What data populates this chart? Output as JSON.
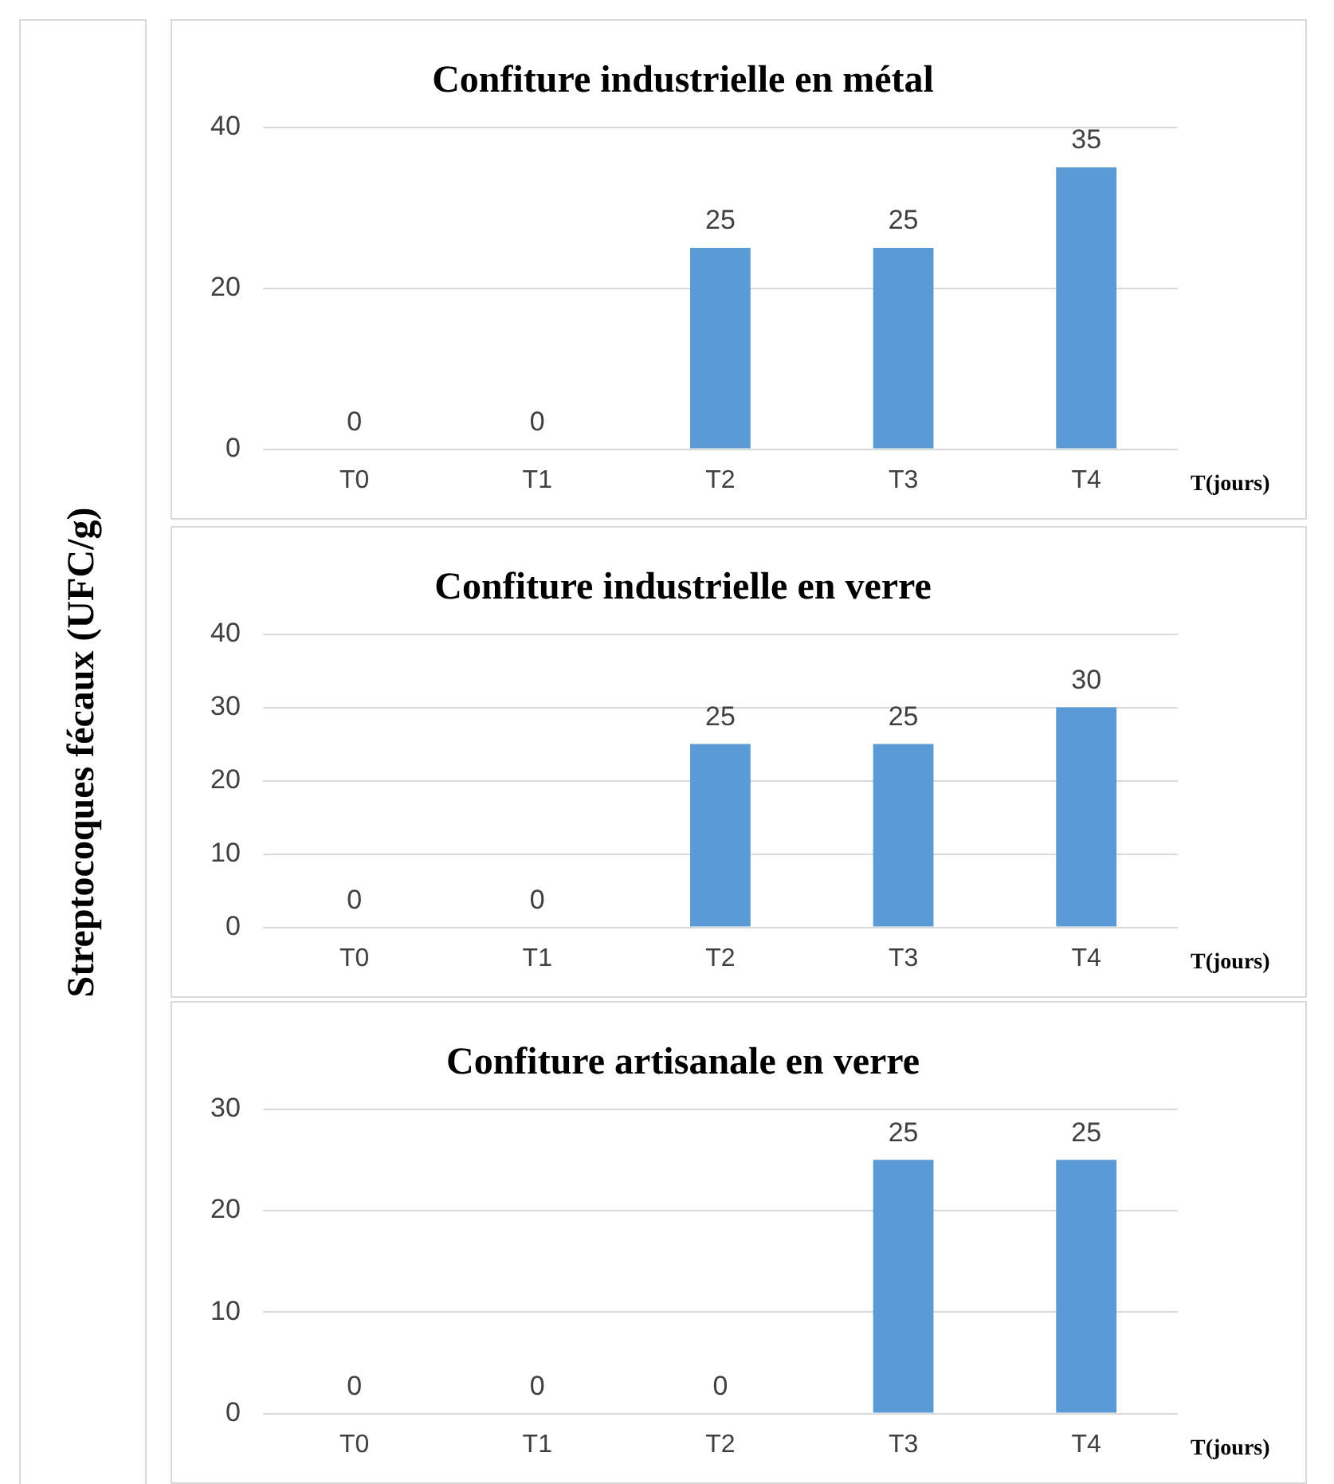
{
  "chart_data": [
    {
      "type": "bar",
      "title": "Confiture industrielle en métal",
      "ylabel": "Streptocoques fécaux (UFC/g)",
      "xlabel": "T(jours)",
      "categories": [
        "T0",
        "T1",
        "T2",
        "T3",
        "T4"
      ],
      "values": [
        0,
        0,
        25,
        25,
        35
      ],
      "color": "#5b9bd5",
      "ylim": [
        0,
        40
      ],
      "yticks": [
        0,
        20,
        40
      ],
      "grid": "y",
      "data_labels": true,
      "legend": false
    },
    {
      "type": "bar",
      "title": "Confiture industrielle en verre",
      "xlabel": "T(jours)",
      "categories": [
        "T0",
        "T1",
        "T2",
        "T3",
        "T4"
      ],
      "values": [
        0,
        0,
        25,
        25,
        30
      ],
      "color": "#5b9bd5",
      "ylim": [
        0,
        40
      ],
      "yticks": [
        0,
        10,
        20,
        30,
        40
      ],
      "grid": "y",
      "data_labels": true,
      "legend": false
    },
    {
      "type": "bar",
      "title": "Confiture artisanale en verre",
      "xlabel": "T(jours)",
      "categories": [
        "T0",
        "T1",
        "T2",
        "T3",
        "T4"
      ],
      "values": [
        0,
        0,
        0,
        25,
        25
      ],
      "color": "#5b9bd5",
      "ylim": [
        0,
        30
      ],
      "yticks": [
        0,
        10,
        20,
        30
      ],
      "grid": "y",
      "data_labels": true,
      "legend": false
    }
  ]
}
